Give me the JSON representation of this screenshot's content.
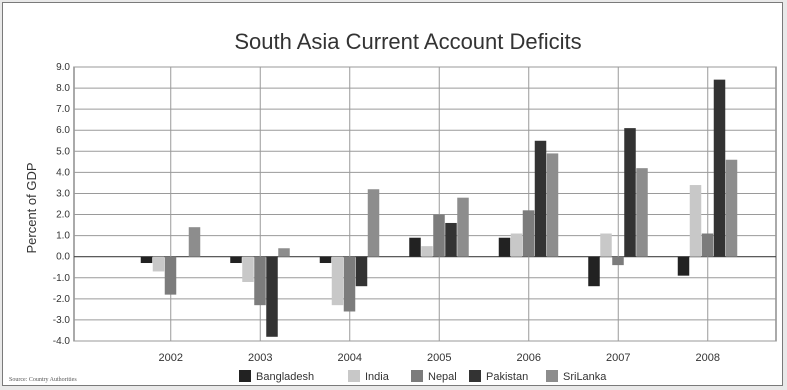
{
  "chart_data": {
    "type": "bar",
    "title": "South Asia Current Account Deficits",
    "ylabel": "Percent of GDP",
    "xlabel": "",
    "source": "Source: Country Authorities",
    "ylim": [
      -4.0,
      9.0
    ],
    "yticks": [
      "9.0",
      "8.0",
      "7.0",
      "6.0",
      "5.0",
      "4.0",
      "3.0",
      "2.0",
      "1.0",
      "0.0",
      "-1.0",
      "-2.0",
      "-3.0",
      "-4.0"
    ],
    "categories": [
      "2002",
      "2003",
      "2004",
      "2005",
      "2006",
      "2007",
      "2008"
    ],
    "grid": true,
    "legend_position": "bottom",
    "series": [
      {
        "name": "Bangladesh",
        "color": "#222222",
        "values": [
          -0.3,
          -0.3,
          -0.3,
          0.9,
          0.9,
          -1.4,
          -0.9
        ]
      },
      {
        "name": "India",
        "color": "#c8c8c8",
        "values": [
          -0.7,
          -1.2,
          -2.3,
          0.5,
          1.1,
          1.1,
          3.4
        ]
      },
      {
        "name": "Nepal",
        "color": "#7c7c7c",
        "values": [
          -1.8,
          -2.3,
          -2.6,
          2.0,
          2.2,
          -0.4,
          1.1
        ]
      },
      {
        "name": "Pakistan",
        "color": "#333333",
        "values": [
          0.0,
          -3.8,
          -1.4,
          1.6,
          5.5,
          6.1,
          8.4
        ]
      },
      {
        "name": "SriLanka",
        "color": "#8d8d8d",
        "values": [
          1.4,
          0.4,
          3.2,
          2.8,
          4.9,
          4.2,
          4.6
        ]
      }
    ]
  }
}
